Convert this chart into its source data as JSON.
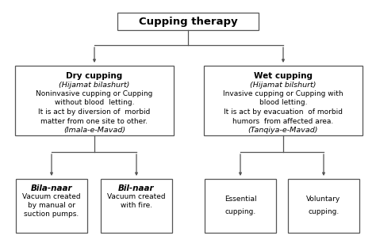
{
  "bg_color": "#ffffff",
  "border_color": "#555555",
  "arrow_color": "#555555",
  "text_color": "#000000",
  "root_text": "Cupping therapy",
  "root_fs": 9.5,
  "dry_title": "Dry cupping",
  "dry_italic1": "(Hijamat bilashurt)",
  "dry_line1": "Noninvasive cupping or Cupping",
  "dry_line2": "without blood  letting.",
  "dry_line3": "It is act by diversion of  morbid",
  "dry_line4": "matter from one site to other.",
  "dry_italic2": "(Imala-e-Mavad)",
  "wet_title": "Wet cupping",
  "wet_italic1": "(Hijamat bilshurt)",
  "wet_line1": "Invasive cupping or Cupping with",
  "wet_line2": "blood letting.",
  "wet_line3": "It is act by evacuation  of morbid",
  "wet_line4": "humors  from affected area.",
  "wet_italic2": "(Tanqiya-e-Mavad)",
  "bila_title": "Bila-naar",
  "bila_line1": "Vacuum created",
  "bila_line2": "by manual or",
  "bila_line3": "suction pumps.",
  "bil_title": "Bil-naar",
  "bil_line1": "Vacuum created",
  "bil_line2": "with fire.",
  "ess_line1": "Essential",
  "ess_line2": "cupping.",
  "vol_line1": "Voluntary",
  "vol_line2": "cupping.",
  "fs_body": 6.5,
  "fs_title": 7.5,
  "fs_italic": 6.8
}
